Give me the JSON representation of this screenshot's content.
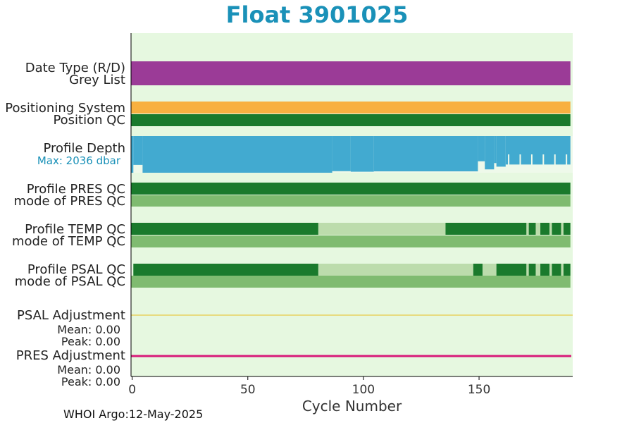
{
  "chart_data": {
    "type": "float-qc-timeline",
    "title": "Float 3901025",
    "xlabel": "Cycle Number",
    "xlim": [
      -0.5,
      190.5
    ],
    "xticks": [
      0,
      50,
      100,
      150
    ],
    "footer": "WHOI Argo:12-May-2025",
    "colors": {
      "background": "#e6f8e0",
      "date_type": "#9b3b97",
      "positioning": "#f8b040",
      "qc_good": "#1a7a2c",
      "qc_mode": "#7fbb70",
      "qc_probably_good": "#bcdcac",
      "profile_depth": "#42aad0",
      "psal_adjustment": "#e8c020",
      "pres_adjustment": "#d81b7a",
      "title": "#1a91b8"
    },
    "rows": {
      "date_type": {
        "label": "Date Type (R/D)",
        "segments": [
          [
            0,
            190,
            "date_type"
          ]
        ]
      },
      "grey_list": {
        "label": "Grey List"
      },
      "positioning": {
        "label": "Positioning System",
        "segments": [
          [
            0,
            190,
            "positioning"
          ]
        ]
      },
      "position_qc": {
        "label": "Position QC",
        "segments": [
          [
            0,
            190,
            "qc_good"
          ]
        ]
      },
      "profile_depth": {
        "label": "Profile Depth",
        "max_label": "Max: 2036 dbar",
        "max_dbar": 2036,
        "steps": [
          [
            0,
            1,
            2036
          ],
          [
            1,
            5,
            1600
          ],
          [
            5,
            87,
            2036
          ],
          [
            87,
            95,
            1950
          ],
          [
            95,
            105,
            1980
          ],
          [
            105,
            150,
            1960
          ],
          [
            150,
            153,
            1400
          ],
          [
            153,
            157,
            1850
          ],
          [
            157,
            158,
            1500
          ],
          [
            158,
            162,
            1700
          ],
          [
            162,
            190,
            1580
          ]
        ]
      },
      "profile_pres_qc": {
        "label": "Profile PRES QC",
        "segments": [
          [
            0,
            190,
            "qc_good"
          ]
        ]
      },
      "mode_pres_qc": {
        "label": "mode of PRES QC",
        "segments": [
          [
            0,
            190,
            "qc_mode"
          ]
        ]
      },
      "profile_temp_qc": {
        "label": "Profile TEMP QC",
        "segments": [
          [
            0,
            81,
            "qc_good"
          ],
          [
            81,
            136,
            "qc_probably_good"
          ],
          [
            136,
            171,
            "qc_good"
          ],
          [
            171,
            172,
            "qc_probably_good"
          ],
          [
            172,
            175,
            "qc_good"
          ],
          [
            175,
            177,
            "qc_probably_good"
          ],
          [
            177,
            181,
            "qc_good"
          ],
          [
            181,
            182,
            "qc_probably_good"
          ],
          [
            182,
            186,
            "qc_good"
          ],
          [
            186,
            187,
            "qc_probably_good"
          ],
          [
            187,
            190,
            "qc_good"
          ]
        ]
      },
      "mode_temp_qc": {
        "label": "mode of TEMP QC",
        "segments": [
          [
            0,
            190,
            "qc_mode"
          ]
        ]
      },
      "profile_psal_qc": {
        "label": "Profile PSAL QC",
        "segments": [
          [
            1,
            81,
            "qc_good"
          ],
          [
            81,
            148,
            "qc_probably_good"
          ],
          [
            148,
            152,
            "qc_good"
          ],
          [
            152,
            158,
            "qc_probably_good"
          ],
          [
            158,
            171,
            "qc_good"
          ],
          [
            171,
            172,
            "qc_probably_good"
          ],
          [
            172,
            175,
            "qc_good"
          ],
          [
            175,
            177,
            "qc_probably_good"
          ],
          [
            177,
            181,
            "qc_good"
          ],
          [
            181,
            182,
            "qc_probably_good"
          ],
          [
            182,
            186,
            "qc_good"
          ],
          [
            186,
            187,
            "qc_probably_good"
          ],
          [
            187,
            190,
            "qc_good"
          ]
        ]
      },
      "mode_psal_qc": {
        "label": "mode of PSAL QC",
        "segments": [
          [
            0,
            190,
            "qc_mode"
          ]
        ]
      },
      "psal_adjustment": {
        "label": "PSAL Adjustment",
        "mean_label": "Mean: 0.00",
        "peak_label": "Peak: 0.00",
        "mean": 0.0,
        "peak": 0.0
      },
      "pres_adjustment": {
        "label": "PRES Adjustment",
        "mean_label": "Mean: 0.00",
        "peak_label": "Peak: 0.00",
        "mean": 0.0,
        "peak": 0.0
      }
    }
  }
}
